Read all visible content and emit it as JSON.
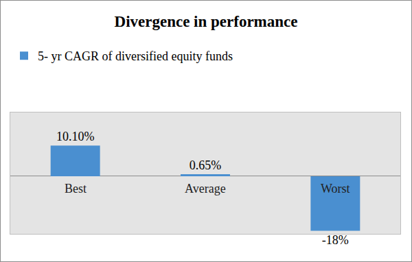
{
  "chart_data": {
    "type": "bar",
    "title": "Divergence in performance",
    "categories": [
      "Best",
      "Average",
      "Worst"
    ],
    "series": [
      {
        "name": "5- yr CAGR of diversified equity funds",
        "color": "#4a8fd0",
        "values": [
          10.1,
          0.65,
          -18
        ],
        "value_labels": [
          "10.10%",
          "0.65%",
          "-18%"
        ]
      }
    ],
    "ylim": [
      -19,
      21
    ],
    "legend": "top-left",
    "data_labels": true,
    "tick_labels": false,
    "grid": false
  }
}
